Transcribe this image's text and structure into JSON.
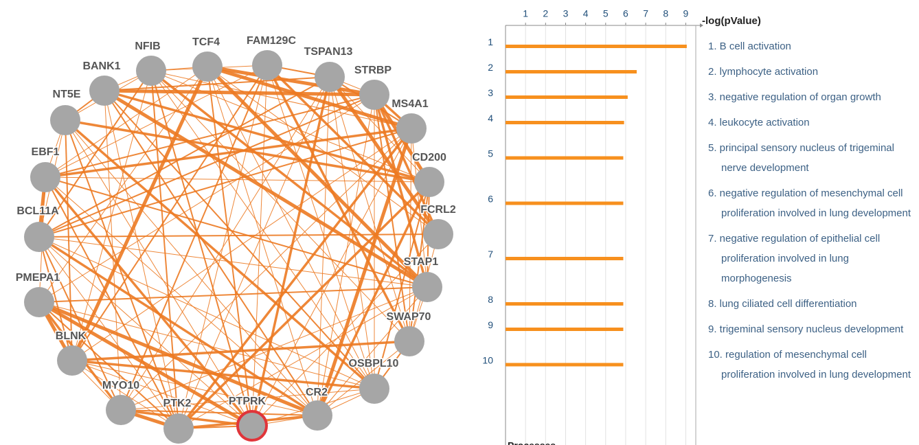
{
  "network": {
    "nodes": [
      {
        "label": "NFIB"
      },
      {
        "label": "TCF4"
      },
      {
        "label": "FAM129C"
      },
      {
        "label": "TSPAN13"
      },
      {
        "label": "STRBP"
      },
      {
        "label": "MS4A1"
      },
      {
        "label": "CD200"
      },
      {
        "label": "FCRL2"
      },
      {
        "label": "STAP1"
      },
      {
        "label": "SWAP70"
      },
      {
        "label": "OSBPL10"
      },
      {
        "label": "CR2"
      },
      {
        "label": "PTPRK"
      },
      {
        "label": "PTK2"
      },
      {
        "label": "MYO10"
      },
      {
        "label": "BLNK"
      },
      {
        "label": "PMEPA1"
      },
      {
        "label": "BCL11A"
      },
      {
        "label": "EBF1"
      },
      {
        "label": "NT5E"
      },
      {
        "label": "BANK1"
      }
    ]
  },
  "chart_data": {
    "type": "hbar",
    "x_label": "-log(pValue)",
    "footer": "Processes",
    "categories": [
      "1",
      "2",
      "3",
      "4",
      "5",
      "6",
      "7",
      "8",
      "9",
      "10"
    ],
    "descriptions": [
      "1. B cell activation",
      "2. lymphocyte activation",
      "3. negative regulation of organ growth",
      "4. leukocyte activation",
      "5. principal sensory nucleus of trigeminal nerve development",
      "6. negative regulation of mesenchymal cell proliferation involved in lung development",
      "7. negative regulation of epithelial cell proliferation involved in lung morphogenesis",
      "8. lung ciliated cell differentiation",
      "9. trigeminal sensory nucleus development",
      "10. regulation of mesenchymal cell proliferation involved in lung development"
    ],
    "values": [
      9.05,
      6.55,
      6.1,
      5.92,
      5.88,
      5.88,
      5.88,
      5.88,
      5.88,
      5.88
    ],
    "color": "#f7901e",
    "xlim": [
      0,
      9.5
    ],
    "xticks": [
      1,
      2,
      3,
      4,
      5,
      6,
      7,
      8,
      9
    ],
    "grid": true
  }
}
